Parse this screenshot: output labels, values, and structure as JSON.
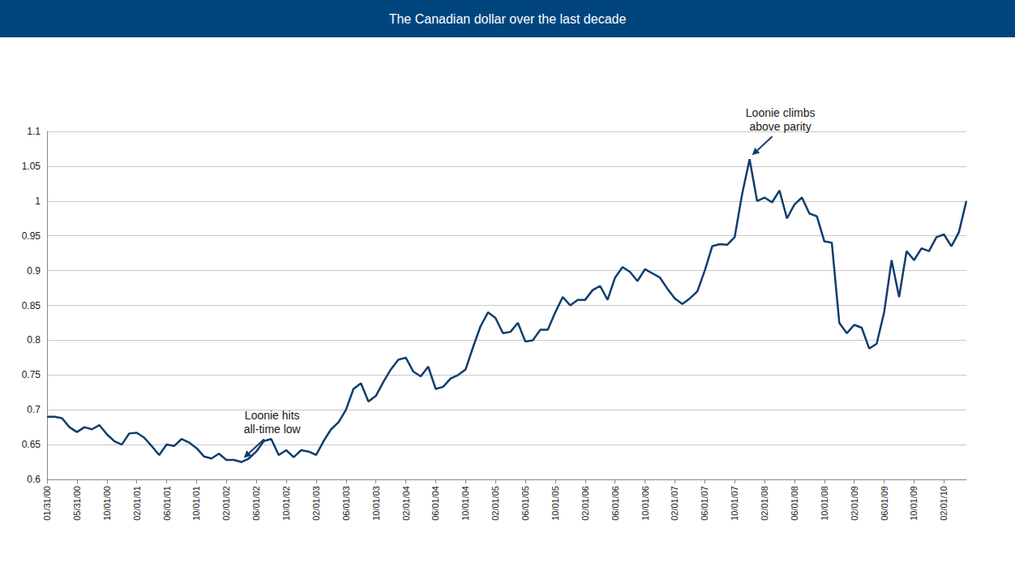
{
  "chart_data": {
    "type": "line",
    "title": "The Canadian dollar over the last decade",
    "color": "#0f3d6e",
    "grid": true,
    "categories": [
      "01/31/00",
      null,
      null,
      null,
      "05/31/00",
      null,
      null,
      null,
      "10/01/00",
      null,
      null,
      null,
      "02/01/01",
      null,
      null,
      null,
      "06/01/01",
      null,
      null,
      null,
      "10/01/01",
      null,
      null,
      null,
      "02/01/02",
      null,
      null,
      null,
      "06/01/02",
      null,
      null,
      null,
      "10/01/02",
      null,
      null,
      null,
      "02/01/03",
      null,
      null,
      null,
      "06/01/03",
      null,
      null,
      null,
      "10/01/03",
      null,
      null,
      null,
      "02/01/04",
      null,
      null,
      null,
      "06/01/04",
      null,
      null,
      null,
      "10/01/04",
      null,
      null,
      null,
      "02/01/05",
      null,
      null,
      null,
      "06/01/05",
      null,
      null,
      null,
      "10/01/05",
      null,
      null,
      null,
      "02/01/06",
      null,
      null,
      null,
      "06/01/06",
      null,
      null,
      null,
      "10/01/06",
      null,
      null,
      null,
      "02/01/07",
      null,
      null,
      null,
      "06/01/07",
      null,
      null,
      null,
      "10/01/07",
      null,
      null,
      null,
      "02/01/08",
      null,
      null,
      null,
      "06/01/08",
      null,
      null,
      null,
      "10/01/08",
      null,
      null,
      null,
      "02/01/09",
      null,
      null,
      null,
      "06/01/09",
      null,
      null,
      null,
      "10/01/09",
      null,
      null,
      null,
      "02/01/10",
      null,
      null,
      null
    ],
    "values": [
      0.69,
      0.69,
      0.688,
      0.675,
      0.668,
      0.675,
      0.672,
      0.678,
      0.665,
      0.655,
      0.65,
      0.666,
      0.667,
      0.66,
      0.648,
      0.635,
      0.65,
      0.648,
      0.658,
      0.653,
      0.645,
      0.633,
      0.63,
      0.637,
      0.628,
      0.628,
      0.625,
      0.63,
      0.64,
      0.655,
      0.658,
      0.635,
      0.642,
      0.632,
      0.642,
      0.64,
      0.635,
      0.655,
      0.672,
      0.682,
      0.7,
      0.73,
      0.738,
      0.712,
      0.72,
      0.74,
      0.758,
      0.772,
      0.775,
      0.755,
      0.748,
      0.762,
      0.73,
      0.733,
      0.745,
      0.75,
      0.758,
      0.79,
      0.82,
      0.84,
      0.832,
      0.81,
      0.812,
      0.825,
      0.798,
      0.8,
      0.815,
      0.815,
      0.84,
      0.862,
      0.85,
      0.858,
      0.858,
      0.872,
      0.878,
      0.858,
      0.89,
      0.905,
      0.898,
      0.885,
      0.902,
      0.896,
      0.89,
      0.874,
      0.86,
      0.852,
      0.86,
      0.87,
      0.9,
      0.935,
      0.938,
      0.937,
      0.948,
      1.01,
      1.06,
      1.0,
      1.005,
      0.998,
      1.015,
      0.975,
      0.995,
      1.005,
      0.982,
      0.978,
      0.942,
      0.94,
      0.825,
      0.81,
      0.822,
      0.818,
      0.788,
      0.795,
      0.84,
      0.915,
      0.862,
      0.928,
      0.915,
      0.932,
      0.928,
      0.948,
      0.952,
      0.935,
      0.955,
      1.0
    ],
    "ylim": [
      0.6,
      1.1
    ],
    "yticks": [
      0.6,
      0.65,
      0.7,
      0.75,
      0.8,
      0.85,
      0.9,
      0.95,
      1,
      1.05,
      1.1
    ],
    "annotations": [
      {
        "text": "Loonie hits all-time low",
        "index": 26
      },
      {
        "text": "Loonie climbs above parity",
        "index": 94
      }
    ]
  }
}
